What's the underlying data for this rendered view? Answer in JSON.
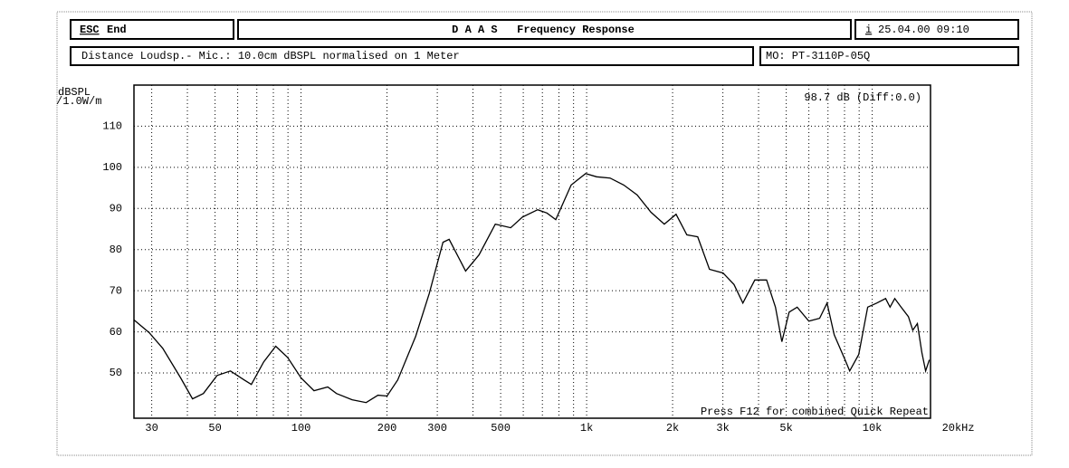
{
  "header": {
    "esc": "ESC",
    "end": "End",
    "title": "D A A S   Frequency Response",
    "info_icon": "i",
    "datetime": "25.04.00 09:10",
    "setup": "Distance Loudsp.- Mic.: 10.0cm dBSPL normalised on 1 Meter",
    "model": "MO: PT-3110P-05Q"
  },
  "chart_data": {
    "type": "line",
    "y_label": [
      "dBSPL",
      "/1.0W/m"
    ],
    "annotations": [
      "98.7 dB (Diff:0.0)",
      "Press F12 for combined Quick Repeat"
    ],
    "log_x": true,
    "grid": true,
    "color": "#000000",
    "xlim": [
      26,
      16000
    ],
    "ylim": [
      39,
      120
    ],
    "xticks": [
      30,
      50,
      100,
      200,
      300,
      500,
      {
        "value": 1000,
        "label": "1k"
      },
      {
        "value": 2000,
        "label": "2k"
      },
      {
        "value": 3000,
        "label": "3k"
      },
      {
        "value": 5000,
        "label": "5k"
      },
      {
        "value": 10000,
        "label": "10k"
      },
      {
        "value": 20000,
        "label": "20kHz"
      }
    ],
    "xgrid": [
      40,
      60,
      70,
      80,
      90,
      400,
      600,
      700,
      800,
      900,
      4000,
      6000,
      7000,
      8000,
      9000
    ],
    "yticks": [
      50,
      60,
      70,
      80,
      90,
      100,
      110
    ],
    "x": [
      26,
      29.4,
      32.8,
      37.9,
      41.7,
      45.5,
      50.8,
      56.6,
      63.2,
      67,
      74,
      81.5,
      89.7,
      100,
      111,
      124,
      133,
      151,
      169,
      186,
      200,
      218,
      252,
      281,
      314,
      330,
      377,
      420,
      479,
      542,
      596,
      674,
      726,
      780,
      883,
      992,
      1084,
      1208,
      1349,
      1503,
      1679,
      1871,
      2056,
      2244,
      2449,
      2692,
      3003,
      3281,
      3525,
      3880,
      4266,
      4585,
      4827,
      5117,
      5460,
      6000,
      6546,
      6950,
      7362,
      8035,
      8337,
      8970,
      9640,
      10370,
      11140,
      11550,
      11990,
      12620,
      13390,
      13870,
      14390,
      14930,
      15380,
      15850
    ],
    "values": [
      62.9,
      59.8,
      56.0,
      48.8,
      43.7,
      45.0,
      49.4,
      50.5,
      48.3,
      47.2,
      52.7,
      56.5,
      53.8,
      48.8,
      45.7,
      46.6,
      45.0,
      43.5,
      42.8,
      44.6,
      44.4,
      48.3,
      58.9,
      69.3,
      81.8,
      82.5,
      74.8,
      78.7,
      86.2,
      85.3,
      87.9,
      89.7,
      88.9,
      87.3,
      95.7,
      98.5,
      97.7,
      97.4,
      95.7,
      93.3,
      89.1,
      86.2,
      88.6,
      83.6,
      83.1,
      75.2,
      74.3,
      71.5,
      67.0,
      72.6,
      72.6,
      66.0,
      57.6,
      64.8,
      66.0,
      62.6,
      63.3,
      67.0,
      59.3,
      53.2,
      50.5,
      54.5,
      66.0,
      67.0,
      68.1,
      66.0,
      68.1,
      66.0,
      63.7,
      60.4,
      62.0,
      54.9,
      50.5,
      53.2
    ]
  }
}
